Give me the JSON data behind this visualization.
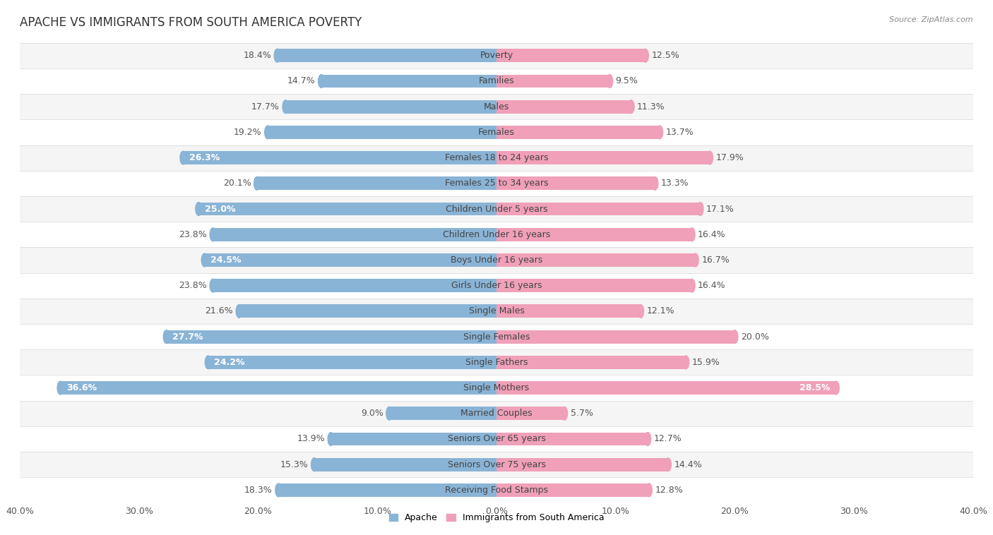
{
  "title": "APACHE VS IMMIGRANTS FROM SOUTH AMERICA POVERTY",
  "source": "Source: ZipAtlas.com",
  "categories": [
    "Poverty",
    "Families",
    "Males",
    "Females",
    "Females 18 to 24 years",
    "Females 25 to 34 years",
    "Children Under 5 years",
    "Children Under 16 years",
    "Boys Under 16 years",
    "Girls Under 16 years",
    "Single Males",
    "Single Females",
    "Single Fathers",
    "Single Mothers",
    "Married Couples",
    "Seniors Over 65 years",
    "Seniors Over 75 years",
    "Receiving Food Stamps"
  ],
  "apache_values": [
    18.4,
    14.7,
    17.7,
    19.2,
    26.3,
    20.1,
    25.0,
    23.8,
    24.5,
    23.8,
    21.6,
    27.7,
    24.2,
    36.6,
    9.0,
    13.9,
    15.3,
    18.3
  ],
  "immigrant_values": [
    12.5,
    9.5,
    11.3,
    13.7,
    17.9,
    13.3,
    17.1,
    16.4,
    16.7,
    16.4,
    12.1,
    20.0,
    15.9,
    28.5,
    5.7,
    12.7,
    14.4,
    12.8
  ],
  "apache_color": "#8ab4d6",
  "immigrant_color": "#f0a0b8",
  "apache_color_dark": "#6a9abf",
  "immigrant_color_dark": "#e07898",
  "label_color_outside": "#555555",
  "label_color_inside": "#ffffff",
  "bg_color": "#ffffff",
  "row_color_light": "#f5f5f5",
  "row_color_white": "#ffffff",
  "stripe_color": "#d8d8d8",
  "max_value": 40.0,
  "legend_apache": "Apache",
  "legend_immigrant": "Immigrants from South America",
  "title_fontsize": 12,
  "label_fontsize": 9,
  "category_fontsize": 9,
  "axis_fontsize": 9,
  "bar_height": 0.52,
  "apache_inbar_threshold": 24.0,
  "immigrant_inbar_threshold": 27.0
}
